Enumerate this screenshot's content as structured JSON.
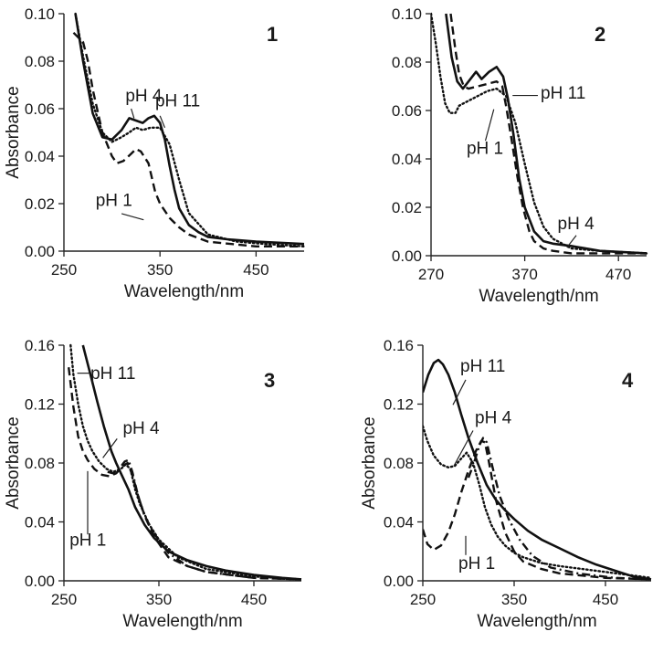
{
  "chart_data": [
    {
      "type": "line",
      "panel_label": "1",
      "xlabel": "Wavelength/nm",
      "ylabel": "Absorbance",
      "xlim": [
        250,
        500
      ],
      "ylim": [
        0,
        0.1
      ],
      "xticks": [
        250,
        350,
        450
      ],
      "xtick_labels": [
        "250",
        "350",
        "450"
      ],
      "yticks": [
        0,
        0.02,
        0.04,
        0.06,
        0.08,
        0.1
      ],
      "ytick_labels": [
        "0.00",
        "0.02",
        "0.04",
        "0.06",
        "0.08",
        "0.10"
      ],
      "grid": false,
      "series": [
        {
          "name": "pH 11",
          "style": "solid",
          "x": [
            262,
            270,
            280,
            290,
            300,
            310,
            318,
            325,
            332,
            338,
            344,
            350,
            355,
            360,
            365,
            370,
            380,
            390,
            400,
            420,
            450,
            500
          ],
          "y": [
            0.1,
            0.08,
            0.058,
            0.048,
            0.047,
            0.051,
            0.056,
            0.055,
            0.054,
            0.056,
            0.057,
            0.054,
            0.047,
            0.036,
            0.026,
            0.018,
            0.011,
            0.008,
            0.006,
            0.005,
            0.004,
            0.003
          ]
        },
        {
          "name": "pH 4",
          "style": "dotted",
          "x": [
            262,
            270,
            280,
            290,
            300,
            310,
            318,
            325,
            332,
            340,
            350,
            360,
            370,
            380,
            400,
            430,
            460,
            500
          ],
          "y": [
            0.1,
            0.082,
            0.062,
            0.05,
            0.046,
            0.048,
            0.05,
            0.052,
            0.051,
            0.052,
            0.052,
            0.045,
            0.03,
            0.016,
            0.007,
            0.004,
            0.003,
            0.002
          ]
        },
        {
          "name": "pH 1",
          "style": "dashed",
          "x": [
            260,
            270,
            275,
            280,
            290,
            300,
            305,
            312,
            320,
            325,
            330,
            338,
            345,
            350,
            360,
            370,
            380,
            400,
            450,
            500
          ],
          "y": [
            0.092,
            0.088,
            0.08,
            0.068,
            0.05,
            0.04,
            0.037,
            0.038,
            0.041,
            0.043,
            0.042,
            0.037,
            0.025,
            0.02,
            0.014,
            0.01,
            0.007,
            0.004,
            0.002,
            0.002
          ]
        }
      ],
      "annotations": [
        {
          "text": "pH 4",
          "x": 314,
          "y": 0.063,
          "line": [
            [
              320,
              0.06
            ],
            [
              323,
              0.056
            ]
          ]
        },
        {
          "text": "pH 11",
          "x": 345,
          "y": 0.061,
          "line": [
            [
              350,
              0.057
            ],
            [
              355,
              0.052
            ]
          ]
        },
        {
          "text": "pH 1",
          "x": 283,
          "y": 0.019,
          "line": [
            [
              310,
              0.0158
            ],
            [
              333,
              0.0132
            ]
          ]
        }
      ]
    },
    {
      "type": "line",
      "panel_label": "2",
      "xlabel": "Wavelength/nm",
      "ylabel": "",
      "xlim": [
        270,
        500
      ],
      "ylim": [
        0,
        0.1
      ],
      "xticks": [
        270,
        370,
        470
      ],
      "xtick_labels": [
        "270",
        "370",
        "470"
      ],
      "yticks": [
        0,
        0.02,
        0.04,
        0.06,
        0.08,
        0.1
      ],
      "ytick_labels": [
        "0.00",
        "0.02",
        "0.04",
        "0.06",
        "0.08",
        "0.10"
      ],
      "grid": false,
      "series": [
        {
          "name": "pH 11",
          "style": "solid",
          "x": [
            286,
            292,
            298,
            304,
            312,
            318,
            324,
            332,
            340,
            347,
            352,
            358,
            364,
            370,
            380,
            390,
            400,
            420,
            450,
            500
          ],
          "y": [
            0.1,
            0.082,
            0.072,
            0.069,
            0.073,
            0.076,
            0.073,
            0.076,
            0.078,
            0.074,
            0.065,
            0.05,
            0.032,
            0.02,
            0.01,
            0.006,
            0.005,
            0.004,
            0.002,
            0.001
          ]
        },
        {
          "name": "pH 4",
          "style": "dotted",
          "x": [
            270,
            275,
            280,
            285,
            290,
            296,
            300,
            310,
            320,
            330,
            340,
            350,
            360,
            370,
            380,
            390,
            400,
            420,
            450,
            500
          ],
          "y": [
            0.1,
            0.088,
            0.074,
            0.063,
            0.059,
            0.059,
            0.062,
            0.064,
            0.066,
            0.068,
            0.069,
            0.066,
            0.055,
            0.038,
            0.022,
            0.012,
            0.007,
            0.003,
            0.002,
            0.001
          ]
        },
        {
          "name": "pH 1",
          "style": "dashed",
          "x": [
            291,
            296,
            300,
            305,
            310,
            320,
            330,
            340,
            346,
            350,
            356,
            362,
            368,
            375,
            380,
            390,
            400,
            420,
            450,
            500
          ],
          "y": [
            0.1,
            0.085,
            0.075,
            0.07,
            0.069,
            0.07,
            0.071,
            0.072,
            0.07,
            0.062,
            0.048,
            0.033,
            0.02,
            0.01,
            0.006,
            0.003,
            0.002,
            0.001,
            0.001,
            0.001
          ]
        }
      ],
      "annotations": [
        {
          "text": "pH 11",
          "x": 387,
          "y": 0.065,
          "line": [
            [
              357,
              0.0662
            ],
            [
              384,
              0.0662
            ]
          ]
        },
        {
          "text": "pH 1",
          "x": 308,
          "y": 0.042,
          "line": [
            [
              328,
              0.0475
            ],
            [
              337,
              0.0605
            ]
          ]
        },
        {
          "text": "pH 4",
          "x": 405,
          "y": 0.011,
          "line": [
            [
              415,
              0.0034
            ],
            [
              425,
              0.0084
            ]
          ]
        }
      ]
    },
    {
      "type": "line",
      "panel_label": "3",
      "xlabel": "Wavelength/nm",
      "ylabel": "Absorbance",
      "xlim": [
        250,
        500
      ],
      "ylim": [
        0,
        0.16
      ],
      "xticks": [
        250,
        350,
        450
      ],
      "xtick_labels": [
        "250",
        "350",
        "450"
      ],
      "yticks": [
        0,
        0.04,
        0.08,
        0.12,
        0.16
      ],
      "ytick_labels": [
        "0.00",
        "0.04",
        "0.08",
        "0.12",
        "0.16"
      ],
      "grid": false,
      "series": [
        {
          "name": "pH 11",
          "style": "solid",
          "x": [
            270,
            278,
            285,
            292,
            300,
            305,
            310,
            318,
            325,
            335,
            345,
            360,
            380,
            400,
            420,
            450,
            480,
            500
          ],
          "y": [
            0.16,
            0.14,
            0.122,
            0.105,
            0.088,
            0.08,
            0.073,
            0.062,
            0.05,
            0.038,
            0.029,
            0.02,
            0.014,
            0.01,
            0.007,
            0.004,
            0.002,
            0.001
          ]
        },
        {
          "name": "pH 4",
          "style": "dotted",
          "x": [
            257,
            260,
            265,
            270,
            275,
            280,
            287,
            295,
            302,
            310,
            315,
            320,
            325,
            330,
            340,
            350,
            370,
            400,
            450,
            500
          ],
          "y": [
            0.16,
            0.14,
            0.12,
            0.105,
            0.095,
            0.088,
            0.081,
            0.076,
            0.074,
            0.076,
            0.079,
            0.076,
            0.062,
            0.052,
            0.038,
            0.028,
            0.016,
            0.008,
            0.003,
            0.001
          ]
        },
        {
          "name": "pH 1",
          "style": "dashed",
          "x": [
            255,
            260,
            265,
            270,
            275,
            282,
            290,
            298,
            305,
            312,
            317,
            322,
            328,
            335,
            345,
            360,
            380,
            400,
            450,
            500
          ],
          "y": [
            0.145,
            0.118,
            0.098,
            0.088,
            0.082,
            0.076,
            0.072,
            0.071,
            0.073,
            0.078,
            0.08,
            0.072,
            0.058,
            0.044,
            0.03,
            0.016,
            0.01,
            0.006,
            0.002,
            0.001
          ]
        },
        {
          "name": "",
          "style": "dashdot",
          "x": [
            296,
            302,
            308,
            314,
            318,
            322,
            328,
            335,
            345,
            360,
            380,
            400,
            450,
            500
          ],
          "y": [
            0.074,
            0.073,
            0.076,
            0.081,
            0.082,
            0.074,
            0.058,
            0.044,
            0.032,
            0.019,
            0.01,
            0.006,
            0.002,
            0.001
          ]
        }
      ],
      "annotations": [
        {
          "text": "pH 11",
          "x": 278,
          "y": 0.137,
          "line": [
            [
              264,
              0.141
            ],
            [
              277,
              0.141
            ]
          ]
        },
        {
          "text": "pH 4",
          "x": 312,
          "y": 0.1,
          "line": [
            [
              291,
              0.0835
            ],
            [
              306,
              0.0965
            ]
          ]
        },
        {
          "text": "pH 1",
          "x": 256,
          "y": 0.024,
          "line": [
            [
              275,
              0.0315
            ],
            [
              275,
              0.0745
            ]
          ]
        }
      ]
    },
    {
      "type": "line",
      "panel_label": "4",
      "xlabel": "Wavelength/nm",
      "ylabel": "Absorbance",
      "xlim": [
        250,
        500
      ],
      "ylim": [
        0,
        0.16
      ],
      "xticks": [
        250,
        350,
        450
      ],
      "xtick_labels": [
        "250",
        "350",
        "450"
      ],
      "yticks": [
        0,
        0.04,
        0.08,
        0.12,
        0.16
      ],
      "ytick_labels": [
        "0.00",
        "0.04",
        "0.08",
        "0.12",
        "0.16"
      ],
      "grid": false,
      "series": [
        {
          "name": "pH 11",
          "style": "solid",
          "x": [
            250,
            256,
            262,
            267,
            272,
            278,
            285,
            292,
            300,
            310,
            320,
            330,
            340,
            350,
            365,
            380,
            400,
            420,
            440,
            460,
            480,
            500
          ],
          "y": [
            0.128,
            0.14,
            0.148,
            0.15,
            0.147,
            0.14,
            0.128,
            0.113,
            0.097,
            0.08,
            0.065,
            0.055,
            0.048,
            0.042,
            0.034,
            0.028,
            0.022,
            0.016,
            0.011,
            0.007,
            0.003,
            0.001
          ]
        },
        {
          "name": "pH 4",
          "style": "dotted",
          "x": [
            250,
            255,
            262,
            270,
            278,
            285,
            292,
            298,
            305,
            312,
            318,
            325,
            332,
            340,
            350,
            360,
            380,
            400,
            450,
            500
          ],
          "y": [
            0.105,
            0.095,
            0.085,
            0.079,
            0.077,
            0.078,
            0.083,
            0.087,
            0.08,
            0.065,
            0.05,
            0.038,
            0.03,
            0.024,
            0.019,
            0.016,
            0.012,
            0.01,
            0.006,
            0.002
          ]
        },
        {
          "name": "pH 1",
          "style": "dashed",
          "x": [
            250,
            255,
            262,
            270,
            278,
            285,
            292,
            300,
            308,
            314,
            318,
            322,
            330,
            340,
            350,
            360,
            380,
            400,
            450,
            500
          ],
          "y": [
            0.035,
            0.025,
            0.021,
            0.024,
            0.033,
            0.045,
            0.06,
            0.075,
            0.088,
            0.095,
            0.094,
            0.082,
            0.055,
            0.033,
            0.02,
            0.013,
            0.008,
            0.005,
            0.002,
            0.001
          ]
        },
        {
          "name": "",
          "style": "dashdot",
          "x": [
            300,
            306,
            312,
            316,
            320,
            326,
            334,
            344,
            356,
            370,
            390,
            420,
            460,
            500
          ],
          "y": [
            0.07,
            0.08,
            0.092,
            0.097,
            0.094,
            0.078,
            0.058,
            0.042,
            0.028,
            0.017,
            0.009,
            0.005,
            0.002,
            0.001
          ]
        }
      ],
      "annotations": [
        {
          "text": "pH 11",
          "x": 291,
          "y": 0.142,
          "line": [
            [
              283,
              0.1195
            ],
            [
              297,
              0.1365
            ]
          ]
        },
        {
          "text": "pH 4",
          "x": 307,
          "y": 0.107,
          "line": [
            [
              284,
              0.078
            ],
            [
              305,
              0.102
            ]
          ]
        },
        {
          "text": "pH 1",
          "x": 289,
          "y": 0.008,
          "line": [
            [
              297,
              0.0175
            ],
            [
              297,
              0.0305
            ]
          ]
        }
      ]
    }
  ]
}
